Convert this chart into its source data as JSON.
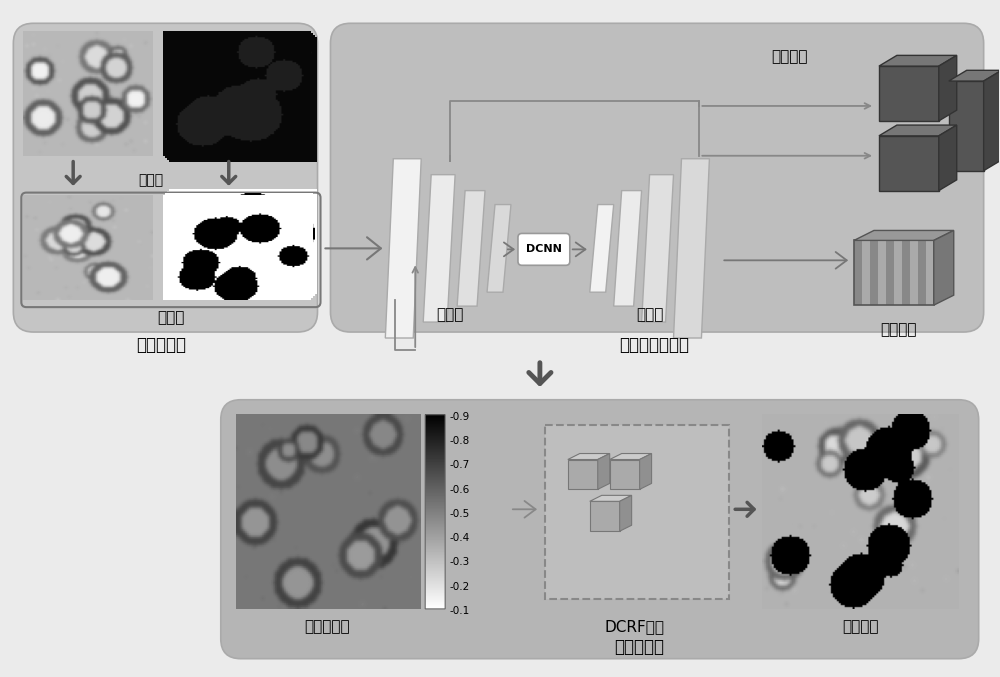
{
  "bg_color": "#ebebeb",
  "box1_color": "#c8c8c8",
  "box2_color": "#c0c0c0",
  "box3_color": "#b8b8b8",
  "labels": {
    "preprocessing": "预处理",
    "training_set": "训练集",
    "data_preprocessing": "数据预处理",
    "encoder": "编码器",
    "DCNN": "DCNN",
    "decoder": "解码器",
    "group_conv": "分组卷积",
    "feature_channel": "特征通道",
    "multilevel": "多层次特征融合",
    "seg_prob": "分割概率图",
    "DCRF": "DCRF优化",
    "seg_result": "分割结果",
    "optimize": "优化和分割"
  },
  "cbar_ticks": [
    "0.9",
    "0.8",
    "0.7",
    "0.6",
    "0.5",
    "0.4",
    "0.3",
    "0.2",
    "0.1"
  ]
}
